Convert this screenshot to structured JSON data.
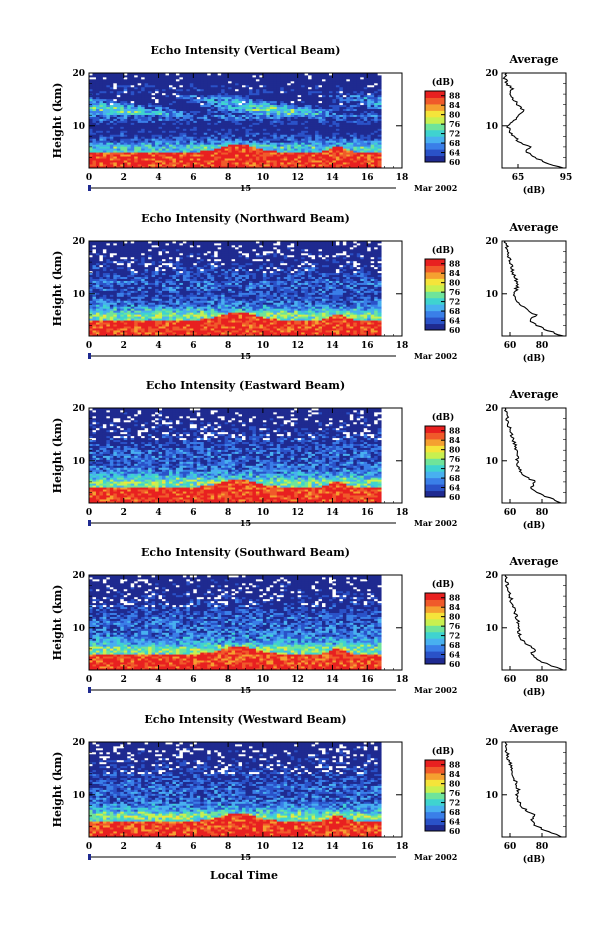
{
  "figure": {
    "xlabel": "Local Time",
    "date_label": "Mar 2002",
    "day_label": "15",
    "cbar_unit": "(dB)",
    "avg_xlabel": "(dB)",
    "avg_title": "Average",
    "ylabel": "Height (km)"
  },
  "colors": {
    "colormap": [
      "#1f2a90",
      "#2a52c8",
      "#3a7fe8",
      "#48b0f0",
      "#3fd3d0",
      "#6fe49a",
      "#c8f050",
      "#f5e43a",
      "#f5a030",
      "#f05a2a",
      "#e82020"
    ]
  },
  "chart_data": [
    {
      "type": "heatmap",
      "title": "Echo Intensity (Vertical Beam)",
      "xlabel": "Local Time",
      "ylabel": "Height (km)",
      "xlim": [
        0,
        18
      ],
      "ylim": [
        2,
        20
      ],
      "xticks": [
        0,
        2,
        4,
        6,
        8,
        10,
        12,
        14,
        16,
        18
      ],
      "xtick_labels": [
        "0",
        "2",
        "4",
        "6",
        "8",
        "10",
        "12",
        "14",
        "16",
        "18"
      ],
      "yticks": [
        10,
        20
      ],
      "colorbar": {
        "label": "(dB)",
        "range": [
          60,
          90
        ],
        "ticks": [
          60,
          64,
          68,
          72,
          76,
          80,
          84,
          88
        ],
        "tick_labels": [
          "60",
          "64",
          "68",
          "72",
          "76",
          "80",
          "84",
          "88"
        ]
      },
      "data_time_range": [
        0,
        16.8
      ],
      "average_profile": {
        "title": "Average",
        "xlabel": "(dB)",
        "xlim": [
          55,
          95
        ],
        "xticks": [
          65,
          95
        ],
        "xtick_labels": [
          "65",
          "95"
        ],
        "height_km": [
          2,
          3,
          4,
          5,
          6,
          7,
          8,
          9,
          10,
          11,
          12,
          13,
          14,
          15,
          16,
          17,
          18,
          19,
          20
        ],
        "db": [
          93,
          82,
          76,
          70,
          72,
          66,
          62,
          60,
          58,
          63,
          66,
          68,
          65,
          62,
          60,
          61,
          58,
          57,
          58
        ]
      }
    },
    {
      "type": "heatmap",
      "title": "Echo Intensity (Northward Beam)",
      "xlabel": "Local Time",
      "ylabel": "Height (km)",
      "xlim": [
        0,
        18
      ],
      "ylim": [
        2,
        20
      ],
      "xticks": [
        0,
        2,
        4,
        6,
        8,
        10,
        12,
        14,
        16,
        18
      ],
      "xtick_labels": [
        "0",
        "2",
        "4",
        "6",
        "8",
        "10",
        "12",
        "14",
        "16",
        "18"
      ],
      "yticks": [
        10,
        20
      ],
      "colorbar": {
        "label": "(dB)",
        "range": [
          60,
          90
        ],
        "ticks": [
          60,
          64,
          68,
          72,
          76,
          80,
          84,
          88
        ],
        "tick_labels": [
          "60",
          "64",
          "68",
          "72",
          "76",
          "80",
          "84",
          "88"
        ]
      },
      "data_time_range": [
        0,
        16.8
      ],
      "average_profile": {
        "title": "Average",
        "xlabel": "(dB)",
        "xlim": [
          55,
          95
        ],
        "xticks": [
          60,
          80
        ],
        "xtick_labels": [
          "60",
          "80"
        ],
        "height_km": [
          2,
          3,
          4,
          5,
          6,
          7,
          8,
          9,
          10,
          11,
          12,
          13,
          14,
          15,
          16,
          17,
          18,
          19,
          20
        ],
        "db": [
          93,
          84,
          77,
          72,
          76,
          70,
          66,
          64,
          63,
          64,
          65,
          63,
          62,
          61,
          60,
          59,
          58,
          58,
          57
        ]
      }
    },
    {
      "type": "heatmap",
      "title": "Echo Intensity (Eastward Beam)",
      "xlabel": "Local Time",
      "ylabel": "Height (km)",
      "xlim": [
        0,
        18
      ],
      "ylim": [
        2,
        20
      ],
      "xticks": [
        0,
        2,
        4,
        6,
        8,
        10,
        12,
        14,
        16,
        18
      ],
      "xtick_labels": [
        "0",
        "2",
        "4",
        "6",
        "8",
        "10",
        "12",
        "14",
        "16",
        "18"
      ],
      "yticks": [
        10,
        20
      ],
      "colorbar": {
        "label": "(dB)",
        "range": [
          60,
          90
        ],
        "ticks": [
          60,
          64,
          68,
          72,
          76,
          80,
          84,
          88
        ],
        "tick_labels": [
          "60",
          "64",
          "68",
          "72",
          "76",
          "80",
          "84",
          "88"
        ]
      },
      "data_time_range": [
        0,
        16.8
      ],
      "average_profile": {
        "title": "Average",
        "xlabel": "(dB)",
        "xlim": [
          55,
          95
        ],
        "xticks": [
          60,
          80
        ],
        "xtick_labels": [
          "60",
          "80"
        ],
        "height_km": [
          2,
          3,
          4,
          5,
          6,
          7,
          8,
          9,
          10,
          11,
          12,
          13,
          14,
          15,
          16,
          17,
          18,
          19,
          20
        ],
        "db": [
          93,
          84,
          77,
          73,
          76,
          70,
          67,
          65,
          64,
          65,
          64,
          63,
          62,
          61,
          60,
          59,
          58,
          58,
          57
        ]
      }
    },
    {
      "type": "heatmap",
      "title": "Echo Intensity (Southward Beam)",
      "xlabel": "Local Time",
      "ylabel": "Height (km)",
      "xlim": [
        0,
        18
      ],
      "ylim": [
        2,
        20
      ],
      "xticks": [
        0,
        2,
        4,
        6,
        8,
        10,
        12,
        14,
        16,
        18
      ],
      "xtick_labels": [
        "0",
        "2",
        "4",
        "6",
        "8",
        "10",
        "12",
        "14",
        "16",
        "18"
      ],
      "yticks": [
        10,
        20
      ],
      "colorbar": {
        "label": "(dB)",
        "range": [
          60,
          90
        ],
        "ticks": [
          60,
          64,
          68,
          72,
          76,
          80,
          84,
          88
        ],
        "tick_labels": [
          "60",
          "64",
          "68",
          "72",
          "76",
          "80",
          "84",
          "88"
        ]
      },
      "data_time_range": [
        0,
        16.8
      ],
      "average_profile": {
        "title": "Average",
        "xlabel": "(dB)",
        "xlim": [
          55,
          95
        ],
        "xticks": [
          60,
          80
        ],
        "xtick_labels": [
          "60",
          "80"
        ],
        "height_km": [
          2,
          3,
          4,
          5,
          6,
          7,
          8,
          9,
          10,
          11,
          12,
          13,
          14,
          15,
          16,
          17,
          18,
          19,
          20
        ],
        "db": [
          93,
          84,
          77,
          73,
          76,
          70,
          67,
          66,
          65,
          65,
          64,
          63,
          62,
          61,
          60,
          59,
          58,
          58,
          57
        ]
      }
    },
    {
      "type": "heatmap",
      "title": "Echo Intensity (Westward Beam)",
      "xlabel": "Local Time",
      "ylabel": "Height (km)",
      "xlim": [
        0,
        18
      ],
      "ylim": [
        2,
        20
      ],
      "xticks": [
        0,
        2,
        4,
        6,
        8,
        10,
        12,
        14,
        16,
        18
      ],
      "xtick_labels": [
        "0",
        "2",
        "4",
        "6",
        "8",
        "10",
        "12",
        "14",
        "16",
        "18"
      ],
      "yticks": [
        10,
        20
      ],
      "colorbar": {
        "label": "(dB)",
        "range": [
          60,
          90
        ],
        "ticks": [
          60,
          64,
          68,
          72,
          76,
          80,
          84,
          88
        ],
        "tick_labels": [
          "60",
          "64",
          "68",
          "72",
          "76",
          "80",
          "84",
          "88"
        ]
      },
      "data_time_range": [
        0,
        16.8
      ],
      "average_profile": {
        "title": "Average",
        "xlabel": "(dB)",
        "xlim": [
          55,
          95
        ],
        "xticks": [
          60,
          80
        ],
        "xtick_labels": [
          "60",
          "80"
        ],
        "height_km": [
          2,
          3,
          4,
          5,
          6,
          7,
          8,
          9,
          10,
          11,
          12,
          13,
          14,
          15,
          16,
          17,
          18,
          19,
          20
        ],
        "db": [
          93,
          84,
          77,
          73,
          76,
          70,
          67,
          65,
          64,
          65,
          64,
          63,
          62,
          61,
          60,
          59,
          58,
          58,
          57
        ]
      }
    }
  ]
}
